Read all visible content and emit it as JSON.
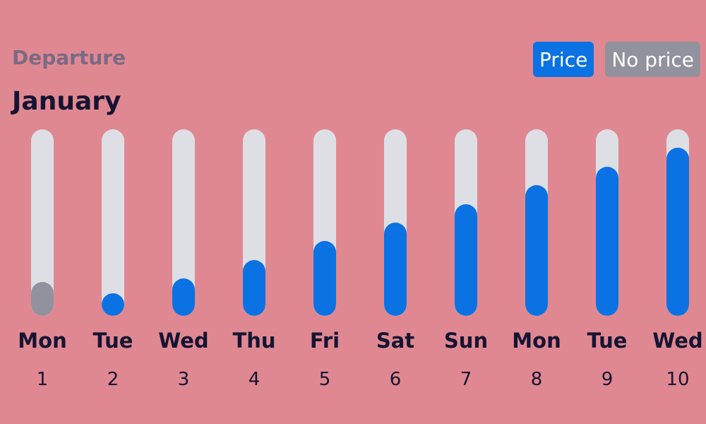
{
  "header": {
    "section_label": "Departure",
    "month_label": "January"
  },
  "legend": {
    "price_label": "Price",
    "no_price_label": "No price",
    "colors": {
      "price": "#0b72e3",
      "no_price": "#92929e",
      "track": "#dedee5"
    }
  },
  "chart_data": {
    "type": "bar",
    "categories": [
      "Mon 1",
      "Tue 2",
      "Wed 3",
      "Thu 4",
      "Fri 5",
      "Sat 6",
      "Sun 7",
      "Mon 8",
      "Tue 9",
      "Wed 10"
    ],
    "days": [
      {
        "weekday": "Mon",
        "day": "1",
        "level": 0.18,
        "has_price": false
      },
      {
        "weekday": "Tue",
        "day": "2",
        "level": 0.1,
        "has_price": true
      },
      {
        "weekday": "Wed",
        "day": "3",
        "level": 0.2,
        "has_price": true
      },
      {
        "weekday": "Thu",
        "day": "4",
        "level": 0.3,
        "has_price": true
      },
      {
        "weekday": "Fri",
        "day": "5",
        "level": 0.4,
        "has_price": true
      },
      {
        "weekday": "Sat",
        "day": "6",
        "level": 0.5,
        "has_price": true
      },
      {
        "weekday": "Sun",
        "day": "7",
        "level": 0.6,
        "has_price": true
      },
      {
        "weekday": "Mon",
        "day": "8",
        "level": 0.7,
        "has_price": true
      },
      {
        "weekday": "Tue",
        "day": "9",
        "level": 0.8,
        "has_price": true
      },
      {
        "weekday": "Wed",
        "day": "10",
        "level": 0.9,
        "has_price": true
      }
    ],
    "ylim": [
      0,
      1
    ],
    "legend_position": "top-right"
  }
}
